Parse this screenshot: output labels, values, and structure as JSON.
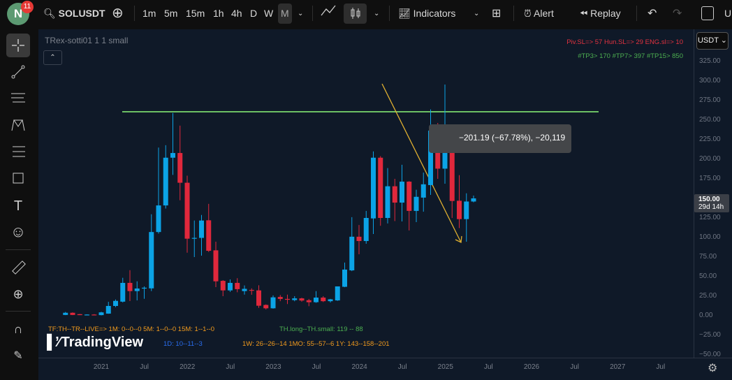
{
  "topbar": {
    "avatar_letter": "N",
    "notification_count": "11",
    "symbol": "SOLUSDT",
    "intervals": [
      "1m",
      "5m",
      "15m",
      "1h",
      "4h",
      "D",
      "W",
      "M"
    ],
    "active_interval": "M",
    "indicators_label": "Indicators",
    "alert_label": "Alert",
    "replay_label": "Replay",
    "cut_label": "U"
  },
  "chart": {
    "indicator_title": "TRex-sotti01 1 1 small",
    "sl_text": "Piv.SL=> 57  Hun.SL=> 29  ENG.sl=> 10",
    "tp_text": "#TP3> 170  #TP7> 397  #TP15> 850",
    "currency": "USDT",
    "measure_text": "−201.19 (−67.78%), −20,119",
    "bottom_line1_orange": "TF:TH--TR--LIVE=>  1M: 0--0--0    5M: 1--0--0    15M: 1--1--0",
    "bottom_line1_green": "TH.long--TH.small: 119 -- 88",
    "bottom_line2_blue": "1D: 10--11--3",
    "bottom_line2_orange": "1W: 26--26--14    1MO: 55--57--6    1Y: 143--158--201",
    "logo_text": "TradingView",
    "last_price": "150.00",
    "countdown": "29d 14h",
    "resistance_level": 260.7,
    "colors": {
      "up": "#0ba3e6",
      "down": "#e0283c",
      "resistance": "#6cc064",
      "arrow": "#e0b030",
      "background": "#0f1928"
    }
  },
  "chart_data": {
    "type": "candlestick",
    "price_ticks": [
      "325.00",
      "300.00",
      "275.00",
      "250.00",
      "225.00",
      "200.00",
      "175.00",
      "150.00",
      "125.00",
      "100.00",
      "75.00",
      "50.00",
      "25.00",
      "0.00",
      "−25.00",
      "−50.00"
    ],
    "time_ticks": [
      "2021",
      "Jul",
      "2022",
      "Jul",
      "2023",
      "Jul",
      "2024",
      "Jul",
      "2025",
      "Jul",
      "2026",
      "Jul",
      "2027",
      "Jul"
    ],
    "ylim": [
      -50,
      325
    ],
    "candles": [
      [
        "2020-08",
        1,
        4.8,
        0.8,
        3.8
      ],
      [
        "2020-09",
        3.8,
        4.2,
        0.8,
        1
      ],
      [
        "2020-10",
        2,
        2.3,
        0.8,
        0.8
      ],
      [
        "2020-11",
        0.8,
        1.8,
        0.6,
        1.5
      ],
      [
        "2020-12",
        1.5,
        2,
        0.6,
        0.8
      ],
      [
        "2021-01",
        0.8,
        5,
        0.5,
        4.3
      ],
      [
        "2021-02",
        2.7,
        17.8,
        2.5,
        12.5
      ],
      [
        "2021-03",
        12.5,
        20.8,
        11,
        19
      ],
      [
        "2021-04",
        18,
        48.5,
        17,
        42
      ],
      [
        "2021-05",
        42,
        58.3,
        18.8,
        31.5
      ],
      [
        "2021-06",
        31.5,
        44,
        19.6,
        34.8
      ],
      [
        "2021-07",
        34.8,
        37.5,
        21.7,
        35.8
      ],
      [
        "2021-08",
        35,
        129.7,
        31.5,
        107
      ],
      [
        "2021-09",
        107,
        215,
        105,
        141
      ],
      [
        "2021-10",
        141,
        218,
        137,
        202
      ],
      [
        "2021-11",
        202,
        259,
        180,
        208
      ],
      [
        "2021-12",
        208,
        243,
        147.6,
        170
      ],
      [
        "2022-01",
        170,
        179,
        80.6,
        98.5
      ],
      [
        "2022-02",
        98.5,
        121.7,
        75,
        99.5
      ],
      [
        "2022-03",
        99.5,
        128.8,
        76.8,
        121.7
      ],
      [
        "2022-04",
        122,
        143,
        81.5,
        83
      ],
      [
        "2022-05",
        83.6,
        94.6,
        36.6,
        44
      ],
      [
        "2022-06",
        44.6,
        45.5,
        25,
        32.4
      ],
      [
        "2022-07",
        32.4,
        46.4,
        30.5,
        42
      ],
      [
        "2022-08",
        42,
        48,
        30,
        34
      ],
      [
        "2022-09",
        31.5,
        38.7,
        27,
        34.4
      ],
      [
        "2022-10",
        33,
        35,
        26.8,
        32
      ],
      [
        "2022-11",
        32.4,
        39,
        10,
        12.8
      ],
      [
        "2022-12",
        13.8,
        14.5,
        8,
        9.5
      ],
      [
        "2023-01",
        9.5,
        26,
        9,
        23.5
      ],
      [
        "2023-02",
        24,
        26.5,
        18.6,
        21.5
      ],
      [
        "2023-03",
        21.5,
        27,
        15,
        20.9
      ],
      [
        "2023-04",
        20,
        25,
        18.5,
        22.2
      ],
      [
        "2023-05",
        22.2,
        23,
        18,
        19.4
      ],
      [
        "2023-06",
        19.8,
        21.5,
        12.2,
        17.3
      ],
      [
        "2023-07",
        17.3,
        31.5,
        16.5,
        23.2
      ],
      [
        "2023-08",
        23.2,
        25,
        17.5,
        18.6
      ],
      [
        "2023-09",
        18.6,
        21.5,
        17,
        21
      ],
      [
        "2023-10",
        19.6,
        37.5,
        19,
        37.5
      ],
      [
        "2023-11",
        37,
        68,
        36.5,
        59
      ],
      [
        "2023-12",
        58,
        126,
        57,
        101
      ],
      [
        "2024-01",
        101,
        116,
        78.6,
        95.5
      ],
      [
        "2024-02",
        95.5,
        134,
        92,
        125
      ],
      [
        "2024-03",
        124.4,
        210,
        104.5,
        202
      ],
      [
        "2024-04",
        202,
        204,
        115,
        125
      ],
      [
        "2024-05",
        125,
        188.7,
        118,
        165.5
      ],
      [
        "2024-06",
        165.5,
        175,
        121,
        144.6
      ],
      [
        "2024-07",
        144.6,
        193,
        120.5,
        171.4
      ],
      [
        "2024-08",
        171.4,
        172,
        109,
        134
      ],
      [
        "2024-09",
        134,
        161,
        119.6,
        152
      ],
      [
        "2024-10",
        151,
        183,
        133,
        168
      ],
      [
        "2024-11",
        167,
        263.7,
        154.5,
        236.6
      ],
      [
        "2024-12",
        236.6,
        246.4,
        175,
        188
      ],
      [
        "2025-01",
        188,
        295.5,
        168.8,
        231
      ],
      [
        "2025-02",
        231,
        235.7,
        125,
        146.7
      ],
      [
        "2025-03",
        147,
        179.7,
        112,
        123.5
      ],
      [
        "2025-04",
        123.5,
        156.5,
        94.6,
        146
      ],
      [
        "2025-05",
        146,
        153.6,
        145,
        150
      ]
    ]
  }
}
